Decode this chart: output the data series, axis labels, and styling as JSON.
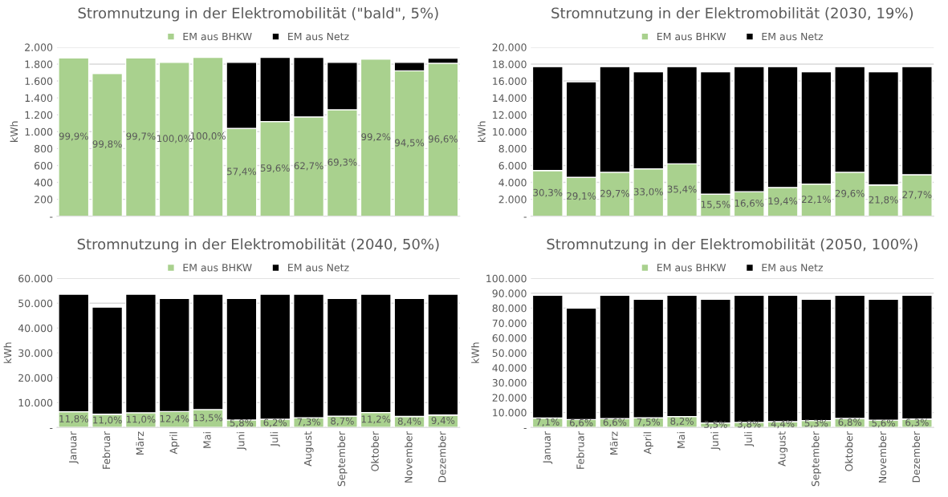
{
  "chart_data": [
    {
      "type": "bar",
      "title": "Stromnutzung in der Elektromobilität (\"bald\", 5%)",
      "ylabel": "kWh",
      "stacked": true,
      "legend": "top",
      "grid": "y",
      "tick_labels": "y",
      "categories": [
        "Januar",
        "Februar",
        "März",
        "April",
        "Mai",
        "Juni",
        "Juli",
        "August",
        "September",
        "Oktober",
        "November",
        "Dezember"
      ],
      "ylim": [
        0,
        2000
      ],
      "yticks": [
        {
          "value": 0,
          "label": "-"
        },
        {
          "value": 200,
          "label": "200"
        },
        {
          "value": 400,
          "label": "400"
        },
        {
          "value": 600,
          "label": "600"
        },
        {
          "value": 800,
          "label": "800"
        },
        {
          "value": 1000,
          "label": "1.000"
        },
        {
          "value": 1200,
          "label": "1.200"
        },
        {
          "value": 1400,
          "label": "1.400"
        },
        {
          "value": 1600,
          "label": "1.600"
        },
        {
          "value": 1800,
          "label": "1.800"
        },
        {
          "value": 2000,
          "label": "2.000"
        }
      ],
      "series": [
        {
          "name": "EM aus BHKW",
          "color": "#a9d18e",
          "values": [
            1875,
            1690,
            1875,
            1820,
            1880,
            1040,
            1120,
            1175,
            1260,
            1860,
            1720,
            1810
          ]
        },
        {
          "name": "EM aus Netz",
          "color": "#000000",
          "values": [
            5,
            10,
            5,
            null,
            null,
            780,
            760,
            705,
            560,
            10,
            100,
            60
          ]
        }
      ],
      "annotations": [
        "99,9%",
        "99,8%",
        "99,7%",
        "100,0%",
        "100,0%",
        "57,4%",
        "59,6%",
        "62,7%",
        "69,3%",
        "99,2%",
        "94,5%",
        "96,6%"
      ]
    },
    {
      "type": "bar",
      "title": "Stromnutzung in der Elektromobilität (2030, 19%)",
      "ylabel": "kWh",
      "stacked": true,
      "legend": "top",
      "grid": "y",
      "tick_labels": "y",
      "categories": [
        "Januar",
        "Februar",
        "März",
        "April",
        "Mai",
        "Juni",
        "Juli",
        "August",
        "September",
        "Oktober",
        "November",
        "Dezember"
      ],
      "ylim": [
        0,
        20000
      ],
      "yticks": [
        {
          "value": 0,
          "label": "-"
        },
        {
          "value": 2000,
          "label": "2.000"
        },
        {
          "value": 4000,
          "label": "4.000"
        },
        {
          "value": 6000,
          "label": "6.000"
        },
        {
          "value": 8000,
          "label": "8.000"
        },
        {
          "value": 10000,
          "label": "10.000"
        },
        {
          "value": 12000,
          "label": "12.000"
        },
        {
          "value": 14000,
          "label": "14.000"
        },
        {
          "value": 16000,
          "label": "16.000"
        },
        {
          "value": 18000,
          "label": "18.000"
        },
        {
          "value": 20000,
          "label": "20.000"
        }
      ],
      "series": [
        {
          "name": "EM aus BHKW",
          "color": "#a9d18e",
          "values": [
            5400,
            4600,
            5200,
            5600,
            6200,
            2600,
            2900,
            3400,
            3800,
            5200,
            3700,
            4900
          ]
        },
        {
          "name": "EM aus Netz",
          "color": "#000000",
          "values": [
            12300,
            11300,
            12500,
            11500,
            11500,
            14500,
            14800,
            14300,
            13300,
            12500,
            13400,
            12800
          ]
        }
      ],
      "annotations": [
        {
          "text": "30,3%",
          "x": "Januar",
          "y": 5400
        },
        {
          "text": "29,1%",
          "x": "Februar",
          "y": 4600
        },
        {
          "text": "29,7%",
          "x": "März",
          "y": 5200
        },
        {
          "text": "33,0%",
          "x": "April",
          "y": 5600
        },
        {
          "text": "35,4%",
          "x": "Mai",
          "y": 6200
        },
        {
          "text": "15,5%",
          "x": "Juni",
          "y": 2600
        },
        {
          "text": "16,6%",
          "x": "Juli",
          "y": 2900
        },
        {
          "text": "19,4%",
          "x": "August",
          "y": 3400
        },
        {
          "text": "22,1%",
          "x": "September",
          "y": 3800
        },
        {
          "text": "29,6%",
          "x": "Oktober",
          "y": 5200
        },
        {
          "text": "21,8%",
          "x": "November",
          "y": 3700
        },
        {
          "text": "27,7%",
          "x": "Dezember",
          "y": 4900
        }
      ]
    },
    {
      "type": "bar",
      "title": "Stromnutzung in der Elektromobilität (2040, 50%)",
      "ylabel": "kWh",
      "stacked": true,
      "legend": "top",
      "grid": "y",
      "categories": [
        "Januar",
        "Februar",
        "März",
        "April",
        "Mai",
        "Juni",
        "Juli",
        "August",
        "September",
        "Oktober",
        "November",
        "Dezember"
      ],
      "ylim": [
        0,
        60000
      ],
      "yticks": [
        {
          "value": 0,
          "label": "-"
        },
        {
          "value": 10000,
          "label": "10.000"
        },
        {
          "value": 20000,
          "label": "20.000"
        },
        {
          "value": 30000,
          "label": "30.000"
        },
        {
          "value": 40000,
          "label": "40.000"
        },
        {
          "value": 50000,
          "label": "50.000"
        },
        {
          "value": 60000,
          "label": "60.000"
        }
      ],
      "series": [
        {
          "name": "EM aus BHKW",
          "color": "#a9d18e",
          "values": [
            6300,
            5300,
            5900,
            6400,
            7200,
            3000,
            3300,
            3900,
            4500,
            6000,
            4400,
            5000
          ]
        },
        {
          "name": "EM aus Netz",
          "color": "#000000",
          "values": [
            47300,
            43100,
            47700,
            45500,
            46400,
            48900,
            50300,
            49700,
            47400,
            47600,
            47500,
            48600
          ]
        }
      ],
      "annotations": [
        {
          "text": "11,8%",
          "x": "Januar",
          "y": 6300
        },
        {
          "text": "11,0%",
          "x": "Februar",
          "y": 5300
        },
        {
          "text": "11,0%",
          "x": "März",
          "y": 5900
        },
        {
          "text": "12,4%",
          "x": "April",
          "y": 6400
        },
        {
          "text": "13,5%",
          "x": "Mai",
          "y": 7200
        },
        {
          "text": "5,8%",
          "x": "Juni",
          "y": 3000
        },
        {
          "text": "6,2%",
          "x": "Juli",
          "y": 3300
        },
        {
          "text": "7,3%",
          "x": "August",
          "y": 3900
        },
        {
          "text": "8,7%",
          "x": "September",
          "y": 4500
        },
        {
          "text": "11,2%",
          "x": "Oktober",
          "y": 6000
        },
        {
          "text": "8,4%",
          "x": "November",
          "y": 4400
        },
        {
          "text": "9,4%",
          "x": "Dezember",
          "y": 5000
        }
      ]
    },
    {
      "type": "bar",
      "title": "Stromnutzung in der Elektromobilität (2050, 100%)",
      "ylabel": "kWh",
      "stacked": true,
      "legend": "top",
      "grid": "y",
      "categories": [
        "Januar",
        "Februar",
        "März",
        "April",
        "Mai",
        "Juni",
        "Juli",
        "August",
        "September",
        "Oktober",
        "November",
        "Dezember"
      ],
      "ylim": [
        0,
        100000
      ],
      "yticks": [
        {
          "value": 0,
          "label": "-"
        },
        {
          "value": 10000,
          "label": "10.000"
        },
        {
          "value": 20000,
          "label": "20.000"
        },
        {
          "value": 30000,
          "label": "30.000"
        },
        {
          "value": 40000,
          "label": "40.000"
        },
        {
          "value": 50000,
          "label": "50.000"
        },
        {
          "value": 60000,
          "label": "60.000"
        },
        {
          "value": 70000,
          "label": "70.000"
        },
        {
          "value": 80000,
          "label": "80.000"
        },
        {
          "value": 90000,
          "label": "90.000"
        },
        {
          "value": 100000,
          "label": "100.000"
        }
      ],
      "series": [
        {
          "name": "EM aus BHKW",
          "color": "#a9d18e",
          "values": [
            6300,
            5300,
            5900,
            6400,
            7300,
            3000,
            3400,
            3900,
            4600,
            6000,
            4800,
            5600
          ]
        },
        {
          "name": "EM aus Netz",
          "color": "#000000",
          "values": [
            82400,
            74700,
            82800,
            79500,
            81400,
            82900,
            85300,
            84800,
            81300,
            82700,
            81100,
            83100
          ]
        }
      ],
      "annotations": [
        {
          "text": "7,1%",
          "x": "Januar",
          "y": 6300
        },
        {
          "text": "6,6%",
          "x": "Februar",
          "y": 5300
        },
        {
          "text": "6,6%",
          "x": "März",
          "y": 5900
        },
        {
          "text": "7,5%",
          "x": "April",
          "y": 6400
        },
        {
          "text": "8,2%",
          "x": "Mai",
          "y": 7300
        },
        {
          "text": "3,5%",
          "x": "Juni",
          "y": 3000
        },
        {
          "text": "3,8%",
          "x": "Juli",
          "y": 3400
        },
        {
          "text": "4,4%",
          "x": "August",
          "y": 3900
        },
        {
          "text": "5,3%",
          "x": "September",
          "y": 4600
        },
        {
          "text": "6,8%",
          "x": "Oktober",
          "y": 6000
        },
        {
          "text": "5,6%",
          "x": "November",
          "y": 4800
        },
        {
          "text": "6,3%",
          "x": "Dezember",
          "y": 5600
        }
      ]
    }
  ]
}
